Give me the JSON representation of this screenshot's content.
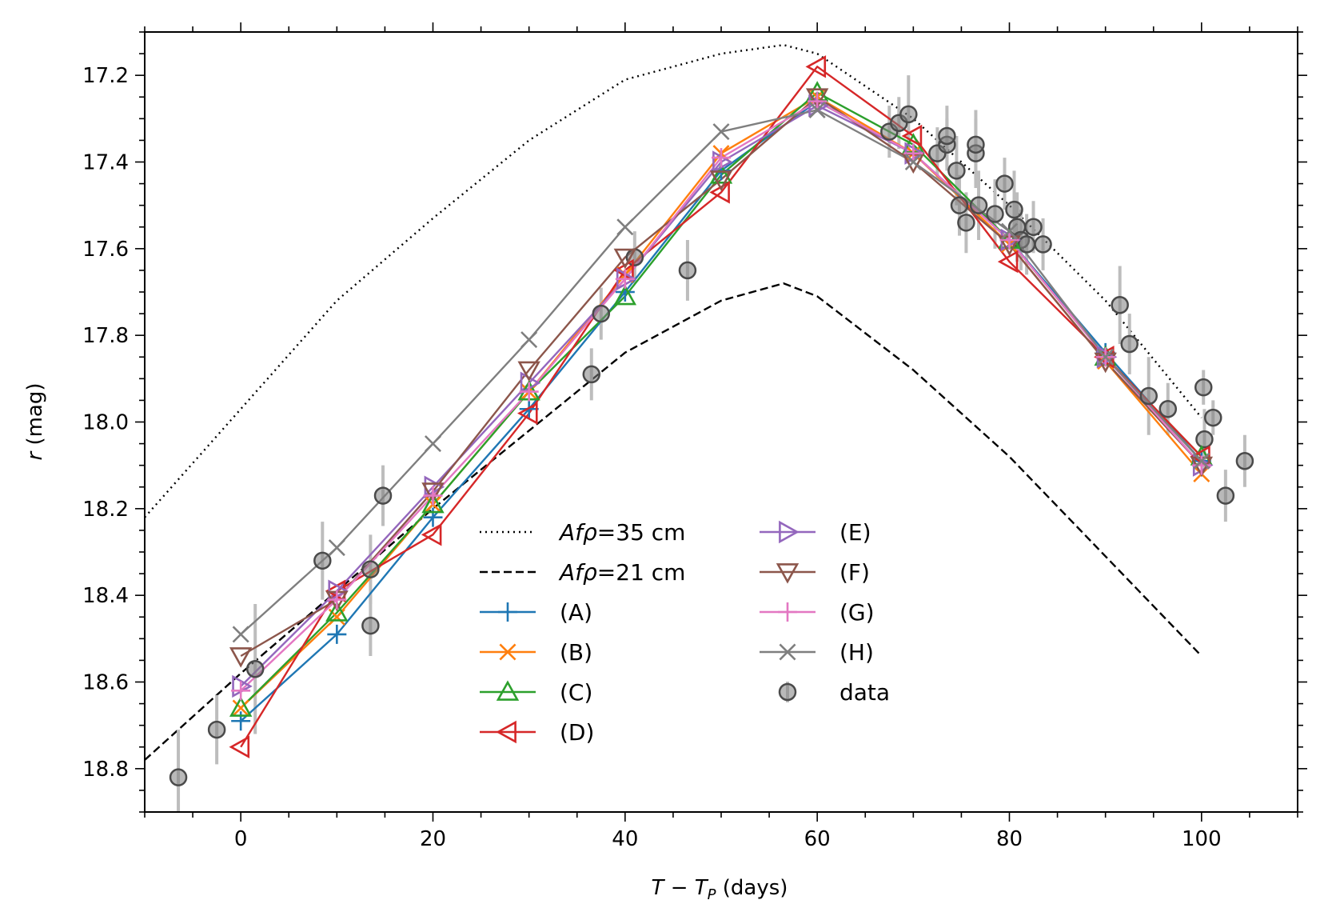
{
  "chart_data": {
    "type": "line",
    "xlabel": "T − T_P (days)",
    "ylabel": "r (mag)",
    "xlim": [
      -10,
      110
    ],
    "ylim": [
      18.9,
      17.1
    ],
    "y_inverted": true,
    "xticks": [
      0,
      20,
      40,
      60,
      80,
      100
    ],
    "yticks": [
      17.2,
      17.4,
      17.6,
      17.8,
      18.0,
      18.2,
      18.4,
      18.6,
      18.8
    ],
    "xtick_labels": [
      "0",
      "20",
      "40",
      "60",
      "80",
      "100"
    ],
    "ytick_labels": [
      "17.2",
      "17.4",
      "17.6",
      "17.8",
      "18.0",
      "18.2",
      "18.4",
      "18.6",
      "18.8"
    ],
    "curves": [
      {
        "name": "Afρ=35 cm",
        "label_prefix": "Afρ",
        "label_value": "=35 cm",
        "style": "dotted",
        "color": "#000000",
        "x": [
          -10,
          0,
          10,
          20,
          30,
          40,
          50,
          56.5,
          60,
          70,
          80,
          90,
          100
        ],
        "y": [
          18.22,
          17.97,
          17.72,
          17.53,
          17.35,
          17.21,
          17.15,
          17.13,
          17.15,
          17.3,
          17.5,
          17.72,
          17.99
        ]
      },
      {
        "name": "Afρ=21 cm",
        "label_prefix": "Afρ",
        "label_value": "=21 cm",
        "style": "dashed",
        "color": "#000000",
        "x": [
          -10,
          0,
          10,
          20,
          30,
          40,
          50,
          56.5,
          60,
          70,
          80,
          90,
          100
        ],
        "y": [
          18.78,
          18.58,
          18.39,
          18.2,
          18.02,
          17.84,
          17.72,
          17.68,
          17.71,
          17.88,
          18.08,
          18.31,
          18.54
        ]
      }
    ],
    "series": [
      {
        "name": "(A)",
        "color": "#1f77b4",
        "marker": "plus",
        "x": [
          0,
          10,
          20,
          30,
          40,
          50,
          60,
          70,
          80,
          90,
          100
        ],
        "y": [
          18.69,
          18.49,
          18.22,
          17.97,
          17.7,
          17.42,
          17.26,
          17.38,
          17.58,
          17.84,
          18.09
        ]
      },
      {
        "name": "(B)",
        "color": "#ff7f0e",
        "marker": "x",
        "x": [
          0,
          10,
          20,
          30,
          40,
          50,
          60,
          70,
          80,
          90,
          100
        ],
        "y": [
          18.66,
          18.45,
          18.19,
          17.93,
          17.66,
          17.38,
          17.25,
          17.38,
          17.59,
          17.86,
          18.12
        ]
      },
      {
        "name": "(C)",
        "color": "#2ca02c",
        "marker": "triangle-up",
        "x": [
          0,
          10,
          20,
          30,
          40,
          50,
          60,
          70,
          80,
          90,
          100
        ],
        "y": [
          18.66,
          18.44,
          18.19,
          17.93,
          17.71,
          17.43,
          17.24,
          17.36,
          17.58,
          17.85,
          18.08
        ]
      },
      {
        "name": "(D)",
        "color": "#d62728",
        "marker": "triangle-left",
        "x": [
          0,
          10,
          20,
          30,
          40,
          50,
          60,
          70,
          80,
          90,
          100
        ],
        "y": [
          18.75,
          18.39,
          18.26,
          17.98,
          17.65,
          17.47,
          17.18,
          17.34,
          17.63,
          17.85,
          18.08
        ]
      },
      {
        "name": "(E)",
        "color": "#9467bd",
        "marker": "triangle-right",
        "x": [
          0,
          10,
          20,
          30,
          40,
          50,
          60,
          70,
          80,
          90,
          100
        ],
        "y": [
          18.61,
          18.39,
          18.15,
          17.91,
          17.67,
          17.4,
          17.27,
          17.38,
          17.58,
          17.85,
          18.1
        ]
      },
      {
        "name": "(F)",
        "color": "#8c564b",
        "marker": "triangle-down",
        "x": [
          0,
          10,
          20,
          30,
          40,
          50,
          60,
          70,
          80,
          90,
          100
        ],
        "y": [
          18.54,
          18.41,
          18.16,
          17.88,
          17.62,
          17.44,
          17.25,
          17.4,
          17.59,
          17.86,
          18.1
        ]
      },
      {
        "name": "(G)",
        "color": "#e377c2",
        "marker": "plus",
        "x": [
          0,
          10,
          20,
          30,
          40,
          50,
          60,
          70,
          80,
          90,
          100
        ],
        "y": [
          18.62,
          18.41,
          18.17,
          17.93,
          17.67,
          17.39,
          17.26,
          17.38,
          17.58,
          17.85,
          18.1
        ]
      },
      {
        "name": "(H)",
        "color": "#7f7f7f",
        "marker": "x",
        "x": [
          0,
          10,
          20,
          30,
          40,
          50,
          60,
          70,
          80,
          90,
          100
        ],
        "y": [
          18.49,
          18.29,
          18.05,
          17.81,
          17.55,
          17.33,
          17.28,
          17.4,
          17.56,
          17.85,
          18.09
        ]
      }
    ],
    "data_points": {
      "name": "data",
      "x": [
        -6.5,
        -2.5,
        1.5,
        8.5,
        13.5,
        13.5,
        14.8,
        36.5,
        37.5,
        41.0,
        46.5,
        67.5,
        68.5,
        69.5,
        72.5,
        73.5,
        73.5,
        74.5,
        74.8,
        75.5,
        76.5,
        76.5,
        76.8,
        78.5,
        79.5,
        80.5,
        80.8,
        81.2,
        81.8,
        82.5,
        83.5,
        91.5,
        92.5,
        94.5,
        96.5,
        100.2,
        100.3,
        101.2,
        102.5,
        104.5
      ],
      "y": [
        18.82,
        18.71,
        18.57,
        18.32,
        18.34,
        18.47,
        18.17,
        17.89,
        17.75,
        17.62,
        17.65,
        17.33,
        17.31,
        17.29,
        17.38,
        17.36,
        17.34,
        17.42,
        17.5,
        17.54,
        17.38,
        17.36,
        17.5,
        17.52,
        17.45,
        17.51,
        17.55,
        17.58,
        17.59,
        17.55,
        17.59,
        17.73,
        17.82,
        17.94,
        17.97,
        17.92,
        18.04,
        17.99,
        18.17,
        18.09
      ],
      "err": [
        0.11,
        0.08,
        0.15,
        0.09,
        0.08,
        0.07,
        0.07,
        0.06,
        0.06,
        0.06,
        0.07,
        0.06,
        0.06,
        0.09,
        0.06,
        0.06,
        0.07,
        0.08,
        0.07,
        0.07,
        0.08,
        0.08,
        0.08,
        0.08,
        0.06,
        0.09,
        0.08,
        0.07,
        0.07,
        0.06,
        0.06,
        0.09,
        0.07,
        0.09,
        0.06,
        0.04,
        0.07,
        0.04,
        0.06,
        0.06
      ],
      "color": "#7f7f7f"
    },
    "legend_position": "lower-center"
  }
}
